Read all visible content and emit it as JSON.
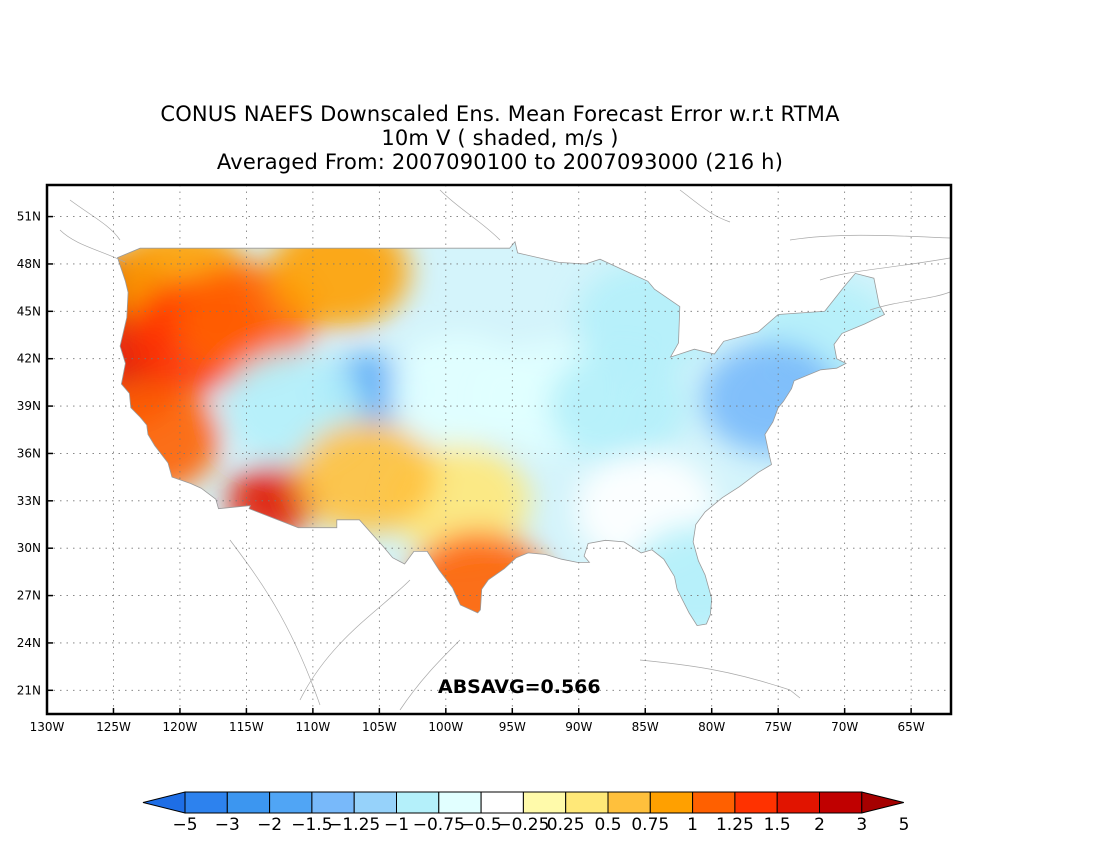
{
  "title": {
    "line1": "CONUS NAEFS Downscaled Ens. Mean Forecast Error w.r.t RTMA",
    "line2": "10m V ( shaded, m/s )",
    "line3": "Averaged From: 2007090100 to 2007093000 (216 h)"
  },
  "annotation": {
    "absavg": "ABSAVG=0.566"
  },
  "map": {
    "lon_range": [
      -130,
      -62
    ],
    "lat_range": [
      19.5,
      53
    ],
    "lat_ticks": [
      {
        "value": 51,
        "label": "51N"
      },
      {
        "value": 48,
        "label": "48N"
      },
      {
        "value": 45,
        "label": "45N"
      },
      {
        "value": 42,
        "label": "42N"
      },
      {
        "value": 39,
        "label": "39N"
      },
      {
        "value": 36,
        "label": "36N"
      },
      {
        "value": 33,
        "label": "33N"
      },
      {
        "value": 30,
        "label": "30N"
      },
      {
        "value": 27,
        "label": "27N"
      },
      {
        "value": 24,
        "label": "24N"
      },
      {
        "value": 21,
        "label": "21N"
      }
    ],
    "lon_ticks": [
      {
        "value": -130,
        "label": "130W"
      },
      {
        "value": -125,
        "label": "125W"
      },
      {
        "value": -120,
        "label": "120W"
      },
      {
        "value": -115,
        "label": "115W"
      },
      {
        "value": -110,
        "label": "110W"
      },
      {
        "value": -105,
        "label": "105W"
      },
      {
        "value": -100,
        "label": "100W"
      },
      {
        "value": -95,
        "label": "95W"
      },
      {
        "value": -90,
        "label": "90W"
      },
      {
        "value": -85,
        "label": "85W"
      },
      {
        "value": -80,
        "label": "80W"
      },
      {
        "value": -75,
        "label": "75W"
      },
      {
        "value": -70,
        "label": "70W"
      },
      {
        "value": -65,
        "label": "65W"
      }
    ],
    "grid": true,
    "regions": [
      {
        "name": "pacific-northwest-coast",
        "lon": -124.2,
        "lat": 46.5,
        "value": 2.0
      },
      {
        "name": "oregon-coast",
        "lon": -123.8,
        "lat": 43.5,
        "value": 1.7
      },
      {
        "name": "northern-california-coast",
        "lon": -123.5,
        "lat": 40.0,
        "value": 1.6
      },
      {
        "name": "central-california-coast",
        "lon": -122.2,
        "lat": 37.0,
        "value": 1.2
      },
      {
        "name": "washington-interior",
        "lon": -120.0,
        "lat": 47.0,
        "value": 0.8
      },
      {
        "name": "oregon-interior",
        "lon": -118.5,
        "lat": 43.5,
        "value": 1.3
      },
      {
        "name": "idaho",
        "lon": -115.0,
        "lat": 44.5,
        "value": 1.2
      },
      {
        "name": "northern-montana",
        "lon": -108.0,
        "lat": 47.5,
        "value": 0.8
      },
      {
        "name": "arizona-south",
        "lon": -113.0,
        "lat": 33.0,
        "value": 1.8
      },
      {
        "name": "wyoming-colorado",
        "lon": -106.0,
        "lat": 40.0,
        "value": -1.6
      },
      {
        "name": "utah",
        "lon": -111.5,
        "lat": 39.0,
        "value": -0.9
      },
      {
        "name": "nebraska-kansas",
        "lon": -99.0,
        "lat": 40.0,
        "value": -0.6
      },
      {
        "name": "iowa-missouri",
        "lon": -92.0,
        "lat": 39.5,
        "value": -0.7
      },
      {
        "name": "illinois-indiana",
        "lon": -87.0,
        "lat": 39.0,
        "value": -0.8
      },
      {
        "name": "great-lakes",
        "lon": -85.0,
        "lat": 44.5,
        "value": -0.9
      },
      {
        "name": "new-england",
        "lon": -71.5,
        "lat": 43.5,
        "value": -1.0
      },
      {
        "name": "mid-atlantic-coast",
        "lon": -75.5,
        "lat": 39.5,
        "value": -1.4
      },
      {
        "name": "texas-north",
        "lon": -99.0,
        "lat": 33.0,
        "value": 0.3
      },
      {
        "name": "new-mexico",
        "lon": -106.0,
        "lat": 34.5,
        "value": 0.5
      },
      {
        "name": "texas-gulf-coast",
        "lon": -97.5,
        "lat": 27.5,
        "value": 1.2
      },
      {
        "name": "southeast",
        "lon": -85.0,
        "lat": 32.5,
        "value": -0.4
      },
      {
        "name": "florida",
        "lon": -81.0,
        "lat": 28.0,
        "value": -0.8
      }
    ]
  },
  "colorbar": {
    "colors": [
      "#1e6ee6",
      "#2d82ee",
      "#3c96f0",
      "#50a5f5",
      "#78b9fa",
      "#96d2fa",
      "#b4f0fa",
      "#e1ffff",
      "#ffffff",
      "#fffaaa",
      "#ffe878",
      "#ffc03c",
      "#ffa000",
      "#ff6000",
      "#ff3200",
      "#e11400",
      "#c00000",
      "#a50000"
    ],
    "tick_labels": [
      "-5",
      "-3",
      "-2",
      "-1.5",
      "-1.25",
      "-1",
      "-0.75",
      "-0.5",
      "-0.25",
      "0.25",
      "0.5",
      "0.75",
      "1",
      "1.25",
      "1.5",
      "2",
      "3",
      "5"
    ]
  }
}
